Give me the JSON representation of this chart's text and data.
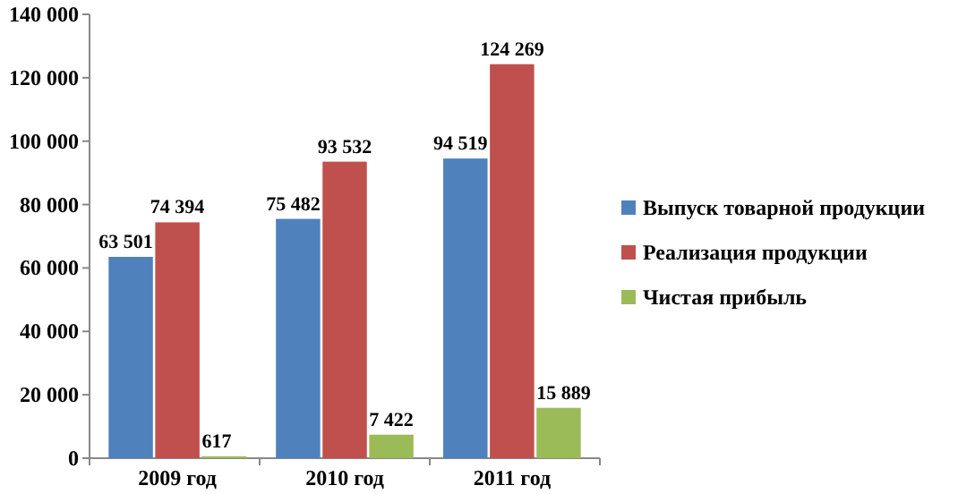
{
  "chart_data": {
    "type": "bar",
    "categories": [
      "2009 год",
      "2010 год",
      "2011 год"
    ],
    "series": [
      {
        "name": "Выпуск товарной продукции",
        "color": "#4f81bd",
        "values": [
          63501,
          75482,
          94519
        ],
        "value_labels": [
          "63 501",
          "75 482",
          "94 519"
        ]
      },
      {
        "name": "Реализация продукции",
        "color": "#c0504d",
        "values": [
          74394,
          93532,
          124269
        ],
        "value_labels": [
          "74 394",
          "93 532",
          "124 269"
        ]
      },
      {
        "name": "Чистая прибыль",
        "color": "#9bbb59",
        "values": [
          617,
          7422,
          15889
        ],
        "value_labels": [
          "617",
          "7 422",
          "15 889"
        ]
      }
    ],
    "ylim": [
      0,
      140000
    ],
    "yticks": [
      {
        "value": 0,
        "label": "0"
      },
      {
        "value": 20000,
        "label": "20 000"
      },
      {
        "value": 40000,
        "label": "40 000"
      },
      {
        "value": 60000,
        "label": "60 000"
      },
      {
        "value": 80000,
        "label": "80 000"
      },
      {
        "value": 100000,
        "label": "100 000"
      },
      {
        "value": 120000,
        "label": "120 000"
      },
      {
        "value": 140000,
        "label": "140 000"
      }
    ],
    "legend": "right"
  }
}
